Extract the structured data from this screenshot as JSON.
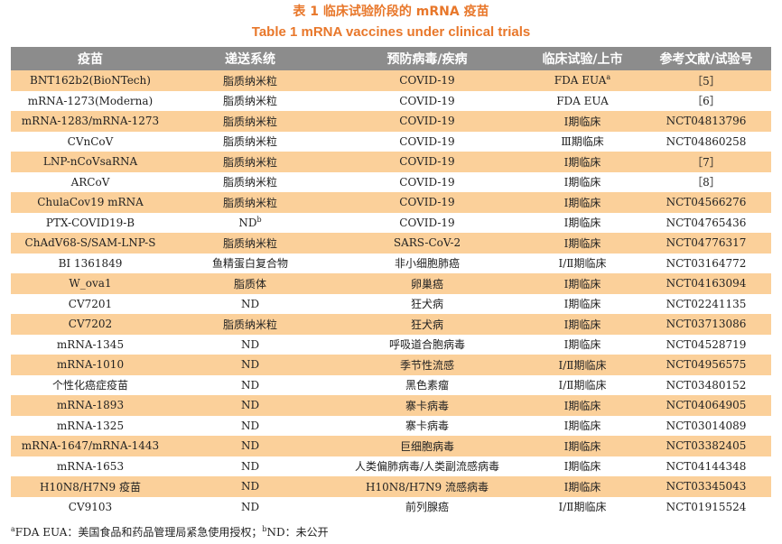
{
  "title_cn": "表 1  临床试验阶段的 mRNA 疫苗",
  "title_en": "Table 1  mRNA vaccines under clinical trials",
  "headers": [
    "疫苗",
    "递送系统",
    "预防病毒/疾病",
    "临床试验/上市",
    "参考文献/试验号"
  ],
  "rows": [
    {
      "vaccine": "BNT162b2(BioNTech)",
      "delivery": "脂质纳米粒",
      "delivery_sup": "",
      "disease": "COVID-19",
      "stage": "FDA EUA",
      "stage_sup": "a",
      "ref": "［5］"
    },
    {
      "vaccine": "mRNA-1273(Moderna)",
      "delivery": "脂质纳米粒",
      "delivery_sup": "",
      "disease": "COVID-19",
      "stage": "FDA EUA",
      "stage_sup": "",
      "ref": "［6］"
    },
    {
      "vaccine": "mRNA-1283/mRNA-1273",
      "delivery": "脂质纳米粒",
      "delivery_sup": "",
      "disease": "COVID-19",
      "stage": "Ⅰ期临床",
      "stage_sup": "",
      "ref": "NCT04813796"
    },
    {
      "vaccine": "CVnCoV",
      "delivery": "脂质纳米粒",
      "delivery_sup": "",
      "disease": "COVID-19",
      "stage": "Ⅲ期临床",
      "stage_sup": "",
      "ref": "NCT04860258"
    },
    {
      "vaccine": "LNP-nCoVsaRNA",
      "delivery": "脂质纳米粒",
      "delivery_sup": "",
      "disease": "COVID-19",
      "stage": "Ⅰ期临床",
      "stage_sup": "",
      "ref": "［7］"
    },
    {
      "vaccine": "ARCoV",
      "delivery": "脂质纳米粒",
      "delivery_sup": "",
      "disease": "COVID-19",
      "stage": "Ⅰ期临床",
      "stage_sup": "",
      "ref": "［8］"
    },
    {
      "vaccine": "ChulaCov19 mRNA",
      "delivery": "脂质纳米粒",
      "delivery_sup": "",
      "disease": "COVID-19",
      "stage": "Ⅰ期临床",
      "stage_sup": "",
      "ref": "NCT04566276"
    },
    {
      "vaccine": "PTX-COVID19-B",
      "delivery": "ND",
      "delivery_sup": "b",
      "disease": "COVID-19",
      "stage": "Ⅰ期临床",
      "stage_sup": "",
      "ref": "NCT04765436"
    },
    {
      "vaccine": "ChAdV68-S/SAM-LNP-S",
      "delivery": "脂质纳米粒",
      "delivery_sup": "",
      "disease": "SARS-CoV-2",
      "stage": "Ⅰ期临床",
      "stage_sup": "",
      "ref": "NCT04776317"
    },
    {
      "vaccine": "BI 1361849",
      "delivery": "鱼精蛋白复合物",
      "delivery_sup": "",
      "disease": "非小细胞肺癌",
      "stage": "Ⅰ/Ⅱ期临床",
      "stage_sup": "",
      "ref": "NCT03164772"
    },
    {
      "vaccine": "W_ova1",
      "delivery": "脂质体",
      "delivery_sup": "",
      "disease": "卵巢癌",
      "stage": "Ⅰ期临床",
      "stage_sup": "",
      "ref": "NCT04163094"
    },
    {
      "vaccine": "CV7201",
      "delivery": "ND",
      "delivery_sup": "",
      "disease": "狂犬病",
      "stage": "Ⅰ期临床",
      "stage_sup": "",
      "ref": "NCT02241135"
    },
    {
      "vaccine": "CV7202",
      "delivery": "脂质纳米粒",
      "delivery_sup": "",
      "disease": "狂犬病",
      "stage": "Ⅰ期临床",
      "stage_sup": "",
      "ref": "NCT03713086"
    },
    {
      "vaccine": "mRNA-1345",
      "delivery": "ND",
      "delivery_sup": "",
      "disease": "呼吸道合胞病毒",
      "stage": "Ⅰ期临床",
      "stage_sup": "",
      "ref": "NCT04528719"
    },
    {
      "vaccine": "mRNA-1010",
      "delivery": "ND",
      "delivery_sup": "",
      "disease": "季节性流感",
      "stage": "Ⅰ/Ⅱ期临床",
      "stage_sup": "",
      "ref": "NCT04956575"
    },
    {
      "vaccine": "个性化癌症疫苗",
      "delivery": "ND",
      "delivery_sup": "",
      "disease": "黑色素瘤",
      "stage": "Ⅰ/Ⅱ期临床",
      "stage_sup": "",
      "ref": "NCT03480152"
    },
    {
      "vaccine": "mRNA-1893",
      "delivery": "ND",
      "delivery_sup": "",
      "disease": "寨卡病毒",
      "stage": "Ⅰ期临床",
      "stage_sup": "",
      "ref": "NCT04064905"
    },
    {
      "vaccine": "mRNA-1325",
      "delivery": "ND",
      "delivery_sup": "",
      "disease": "寨卡病毒",
      "stage": "Ⅰ期临床",
      "stage_sup": "",
      "ref": "NCT03014089"
    },
    {
      "vaccine": "mRNA-1647/mRNA-1443",
      "delivery": "ND",
      "delivery_sup": "",
      "disease": "巨细胞病毒",
      "stage": "Ⅰ期临床",
      "stage_sup": "",
      "ref": "NCT03382405"
    },
    {
      "vaccine": "mRNA-1653",
      "delivery": "ND",
      "delivery_sup": "",
      "disease": "人类偏肺病毒/人类副流感病毒",
      "stage": "Ⅰ期临床",
      "stage_sup": "",
      "ref": "NCT04144348"
    },
    {
      "vaccine": "H10N8/H7N9 疫苗",
      "delivery": "ND",
      "delivery_sup": "",
      "disease": "H10N8/H7N9 流感病毒",
      "stage": "Ⅰ期临床",
      "stage_sup": "",
      "ref": "NCT03345043"
    },
    {
      "vaccine": "CV9103",
      "delivery": "ND",
      "delivery_sup": "",
      "disease": "前列腺癌",
      "stage": "Ⅰ/Ⅱ期临床",
      "stage_sup": "",
      "ref": "NCT01915524"
    }
  ],
  "footnote": {
    "a_mark": "a",
    "a_text": "FDA EUA：美国食品和药品管理局紧急使用授权；",
    "b_mark": "b",
    "b_text": "ND：未公开"
  }
}
